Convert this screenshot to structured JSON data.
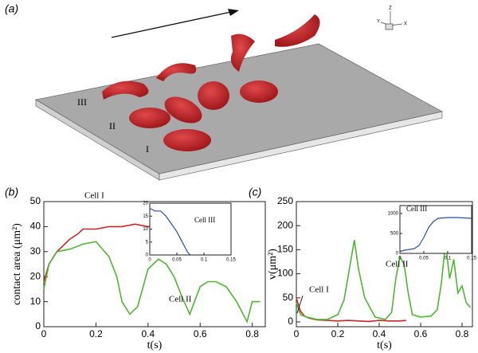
{
  "panel_a": {
    "label": "(a)",
    "cell_labels": [
      "III",
      "II",
      "I"
    ],
    "axes": [
      "Z",
      "Y",
      "X"
    ]
  },
  "chart_data": [
    {
      "type": "line",
      "panel": "(b)",
      "xlabel": "t(s)",
      "ylabel": "contact area (μm²)",
      "xlim": [
        0,
        0.85
      ],
      "xticks": [
        0,
        0.2,
        0.4,
        0.6,
        0.8
      ],
      "ylim": [
        0,
        50
      ],
      "yticks": [
        0,
        10,
        20,
        30,
        40,
        50
      ],
      "series": [
        {
          "name": "Cell I",
          "color": "#c8282a",
          "x": [
            0,
            0.02,
            0.05,
            0.08,
            0.1,
            0.13,
            0.15,
            0.2,
            0.25,
            0.3,
            0.35,
            0.4,
            0.45
          ],
          "values": [
            18,
            25,
            30,
            33,
            35,
            37,
            39,
            39,
            40,
            40,
            41,
            40,
            40
          ]
        },
        {
          "name": "Cell II",
          "color": "#4fb534",
          "x": [
            0,
            0.02,
            0.05,
            0.1,
            0.15,
            0.2,
            0.25,
            0.28,
            0.3,
            0.33,
            0.36,
            0.4,
            0.44,
            0.47,
            0.5,
            0.53,
            0.56,
            0.6,
            0.63,
            0.66,
            0.7,
            0.74,
            0.78,
            0.8,
            0.83
          ],
          "values": [
            15,
            25,
            30,
            31,
            33,
            34,
            28,
            20,
            10,
            5,
            8,
            23,
            27,
            25,
            20,
            12,
            5,
            16,
            18,
            18,
            16,
            10,
            2,
            10,
            10
          ]
        }
      ]
    },
    {
      "type": "line",
      "xlim": [
        0,
        0.15
      ],
      "xticks": [
        0,
        0.05,
        0.1,
        0.15
      ],
      "ylim": [
        0,
        20
      ],
      "yticks": [
        0,
        5,
        10,
        15,
        20
      ],
      "series": [
        {
          "name": "Cell III",
          "color": "#2a4fa0",
          "x": [
            0,
            0.01,
            0.02,
            0.03,
            0.04,
            0.05,
            0.06,
            0.07,
            0.075
          ],
          "values": [
            18,
            17,
            17,
            15,
            12,
            9,
            5,
            1,
            0
          ]
        }
      ]
    },
    {
      "type": "line",
      "panel": "(c)",
      "xlabel": "t(s)",
      "ylabel": "v(μm²)",
      "xlim": [
        0,
        0.85
      ],
      "xticks": [
        0,
        0.2,
        0.4,
        0.6,
        0.8
      ],
      "ylim": [
        -10,
        250
      ],
      "yticks": [
        0,
        50,
        100,
        150,
        200,
        250
      ],
      "series": [
        {
          "name": "Cell I",
          "color": "#c8282a",
          "x": [
            0,
            0.01,
            0.02,
            0.04,
            0.06,
            0.08,
            0.1,
            0.15,
            0.2,
            0.25,
            0.3,
            0.35,
            0.4,
            0.45,
            0.5,
            0.53
          ],
          "values": [
            50,
            35,
            22,
            12,
            8,
            6,
            4,
            3,
            2,
            3,
            2,
            1,
            3,
            2,
            2,
            3
          ]
        },
        {
          "name": "Cell II",
          "color": "#4fb534",
          "x": [
            0,
            0.02,
            0.05,
            0.1,
            0.15,
            0.2,
            0.23,
            0.26,
            0.28,
            0.3,
            0.33,
            0.38,
            0.43,
            0.46,
            0.48,
            0.5,
            0.52,
            0.54,
            0.56,
            0.6,
            0.65,
            0.68,
            0.7,
            0.72,
            0.74,
            0.76,
            0.78,
            0.8,
            0.82,
            0.84
          ],
          "values": [
            40,
            15,
            10,
            5,
            5,
            15,
            45,
            120,
            170,
            110,
            50,
            10,
            5,
            20,
            90,
            135,
            120,
            60,
            15,
            10,
            12,
            25,
            80,
            165,
            90,
            130,
            60,
            75,
            40,
            30
          ]
        }
      ]
    },
    {
      "type": "line",
      "xlim": [
        0,
        0.15
      ],
      "xticks": [
        0,
        0.05,
        0.1,
        0.15
      ],
      "ylim": [
        0,
        1200
      ],
      "yticks": [
        0,
        500,
        1000
      ],
      "series": [
        {
          "name": "Cell III",
          "color": "#2a4fa0",
          "x": [
            0,
            0.01,
            0.02,
            0.03,
            0.04,
            0.05,
            0.06,
            0.07,
            0.08,
            0.1,
            0.12,
            0.15
          ],
          "values": [
            50,
            80,
            100,
            120,
            200,
            400,
            650,
            800,
            880,
            900,
            900,
            880
          ]
        }
      ]
    }
  ]
}
